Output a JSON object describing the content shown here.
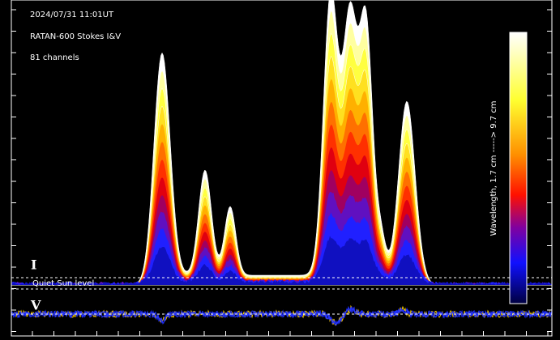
{
  "header": {
    "lines": [
      "2024/07/31 11:01UT",
      "RATAN-600 Stokes I&V",
      "81 channels"
    ]
  },
  "labels": {
    "stokes_i": "I",
    "stokes_v": "V",
    "quiet_sun": "Quiet Sun level"
  },
  "colorbar": {
    "label": "Wavelength, 1.7 cm  ----->  9.7 cm"
  }
}
